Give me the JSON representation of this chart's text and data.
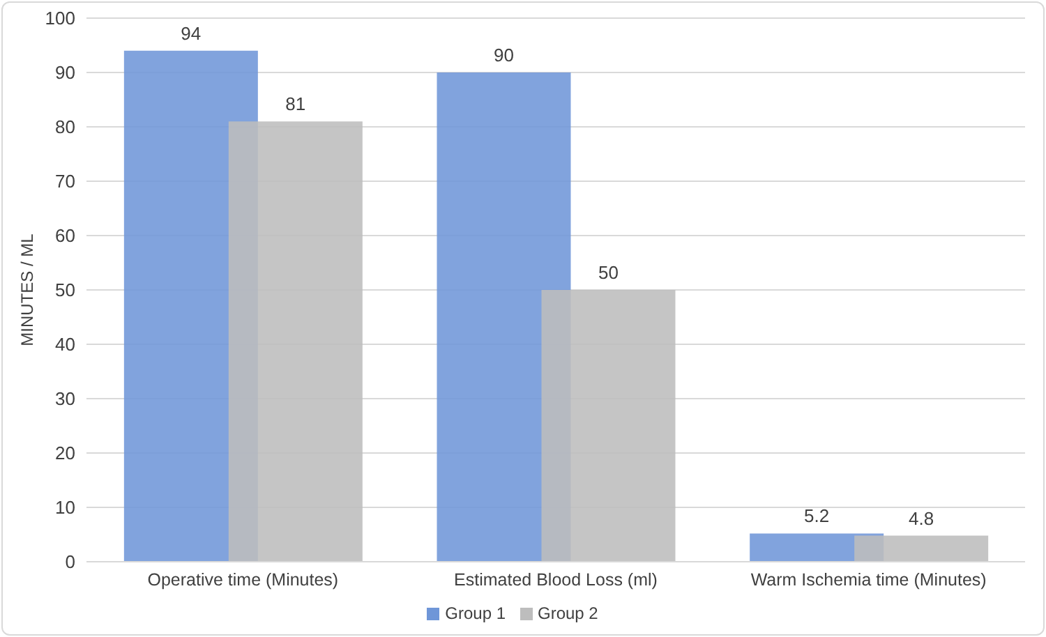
{
  "chart_data": {
    "type": "bar",
    "ylabel": "MINUTES / ML",
    "categories": [
      "Operative time  (Minutes)",
      "Estimated  Blood Loss (ml)",
      "Warm Ischemia  time (Minutes)"
    ],
    "series": [
      {
        "name": "Group 1",
        "color": "#6f96d8",
        "values": [
          94,
          90,
          5.2
        ]
      },
      {
        "name": "Group 2",
        "color": "#bdbdbd",
        "values": [
          81,
          50,
          4.8
        ]
      }
    ],
    "ylim": [
      0,
      100
    ],
    "yticks": [
      0,
      10,
      20,
      30,
      40,
      50,
      60,
      70,
      80,
      90,
      100
    ],
    "grid": "y",
    "legend": "bottom",
    "data_labels": true
  }
}
